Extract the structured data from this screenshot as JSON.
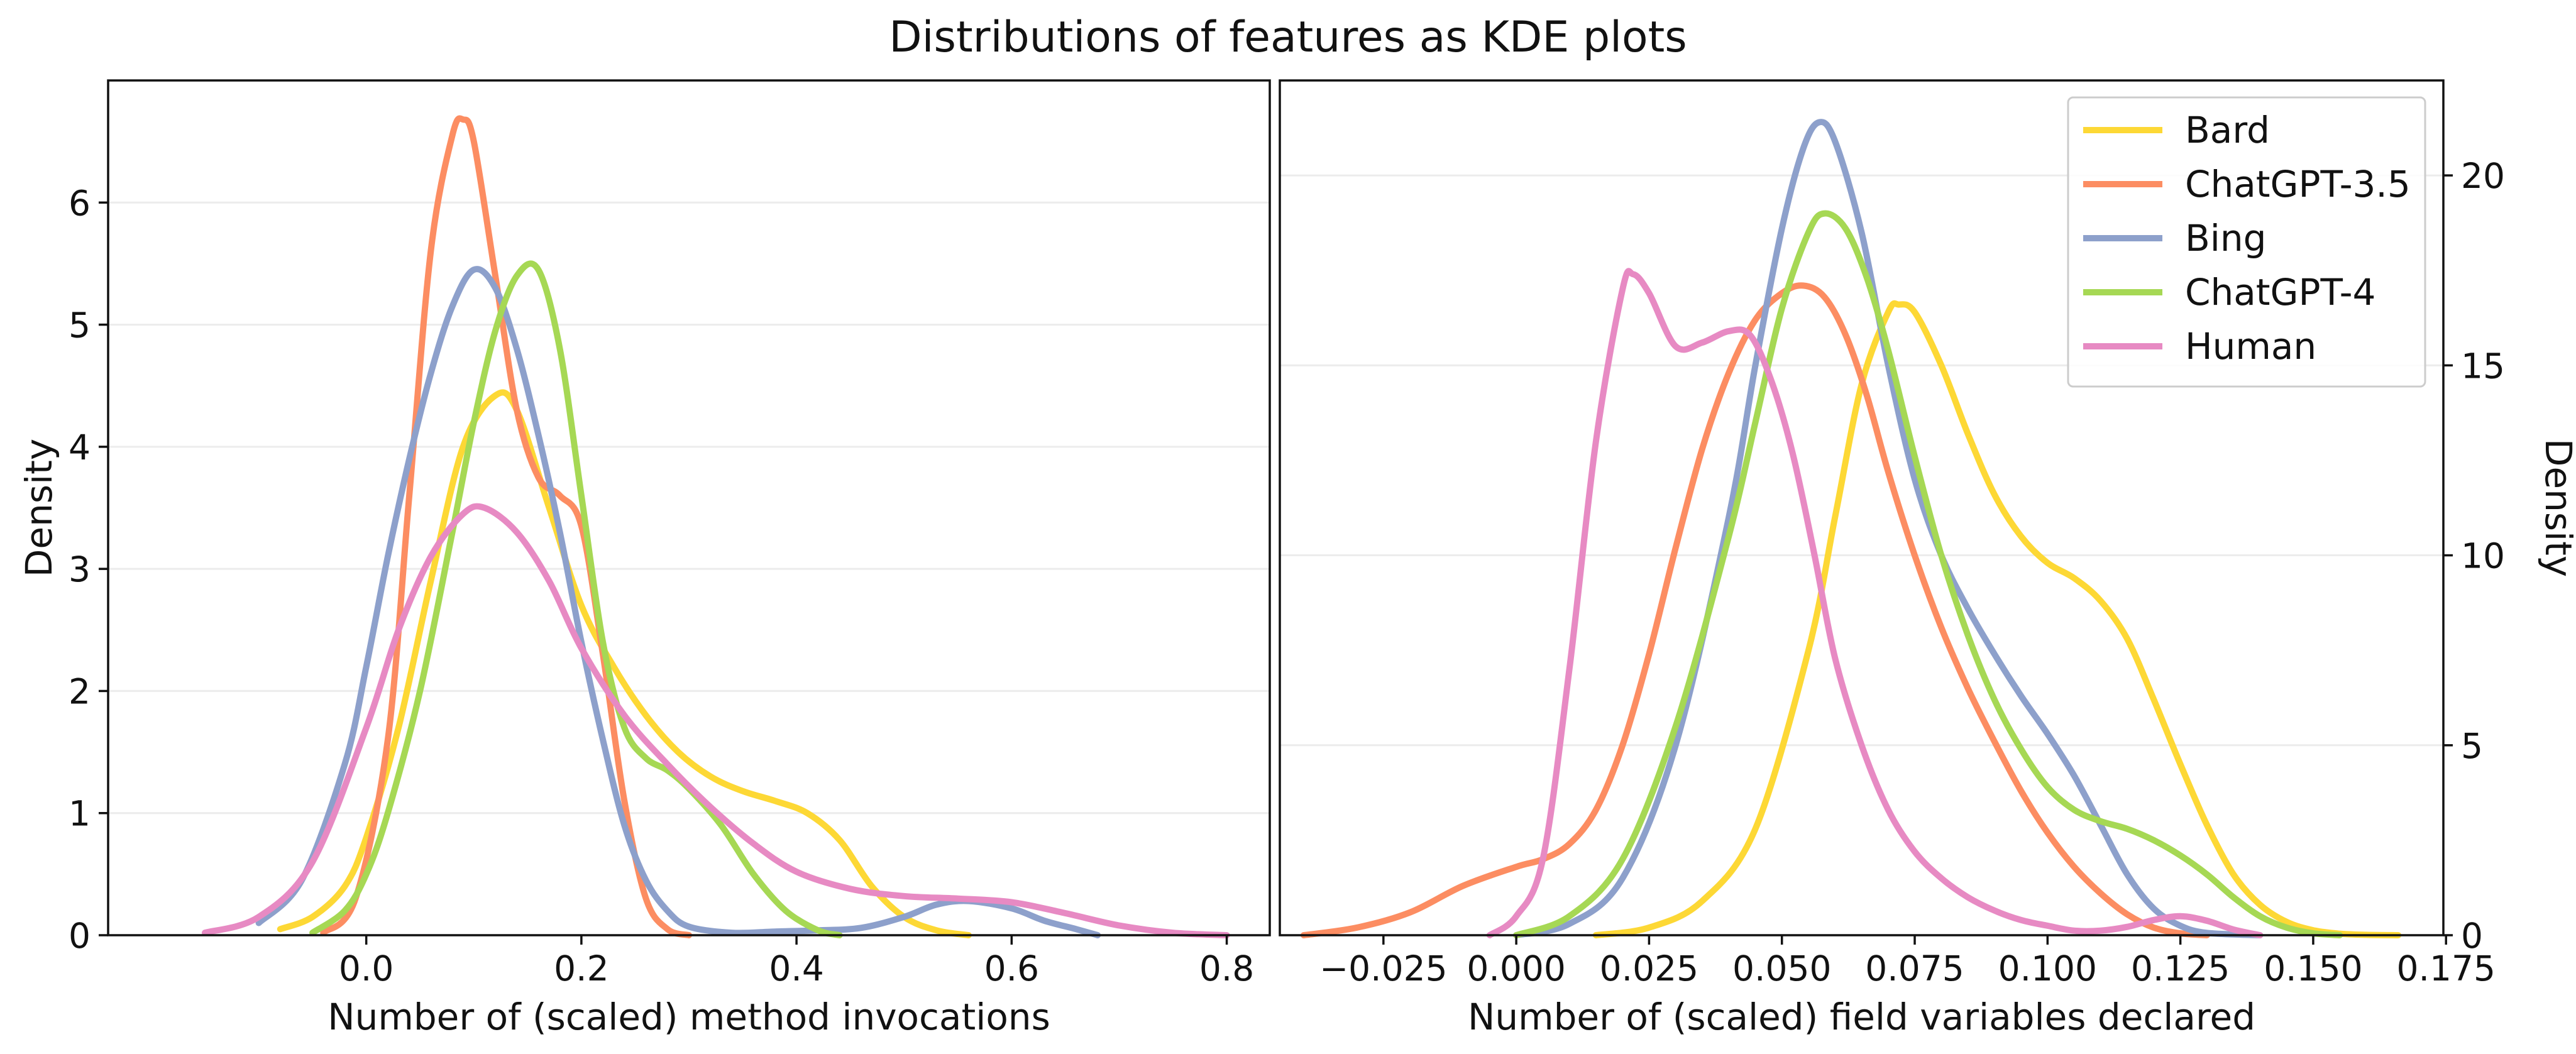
{
  "figure": {
    "title": "Distributions of features as KDE plots"
  },
  "legend": {
    "placement": "top-right",
    "items": [
      {
        "name": "Bard",
        "color": "#FDD835"
      },
      {
        "name": "ChatGPT-3.5",
        "color": "#FC8D62"
      },
      {
        "name": "Bing",
        "color": "#8DA0CB"
      },
      {
        "name": "ChatGPT-4",
        "color": "#A6D854"
      },
      {
        "name": "Human",
        "color": "#E78AC3"
      }
    ]
  },
  "chart_data": [
    {
      "type": "line",
      "subtype": "kde",
      "xlabel": "Number of (scaled) method invocations",
      "ylabel": "Density",
      "y_axis_side": "left",
      "xlim": [
        -0.24,
        0.84
      ],
      "ylim": [
        0,
        7.0
      ],
      "xticks": [
        "0.0",
        "0.2",
        "0.4",
        "0.6",
        "0.8"
      ],
      "xtick_values": [
        0.0,
        0.2,
        0.4,
        0.6,
        0.8
      ],
      "yticks": [
        "0",
        "1",
        "2",
        "3",
        "4",
        "5",
        "6"
      ],
      "ytick_values": [
        0,
        1,
        2,
        3,
        4,
        5,
        6
      ],
      "grid": "horizontal",
      "series": [
        {
          "name": "Bard",
          "color": "#FDD835",
          "x": [
            -0.08,
            -0.05,
            -0.02,
            0.0,
            0.03,
            0.06,
            0.09,
            0.12,
            0.14,
            0.17,
            0.2,
            0.23,
            0.26,
            0.29,
            0.32,
            0.35,
            0.38,
            0.41,
            0.44,
            0.47,
            0.5,
            0.53,
            0.56
          ],
          "y": [
            0.05,
            0.15,
            0.4,
            0.8,
            1.7,
            2.9,
            4.0,
            4.42,
            4.3,
            3.5,
            2.7,
            2.2,
            1.8,
            1.5,
            1.3,
            1.18,
            1.1,
            1.0,
            0.78,
            0.4,
            0.15,
            0.04,
            0.0
          ]
        },
        {
          "name": "ChatGPT-3.5",
          "color": "#FC8D62",
          "x": [
            -0.04,
            -0.01,
            0.02,
            0.04,
            0.06,
            0.08,
            0.09,
            0.1,
            0.12,
            0.14,
            0.16,
            0.18,
            0.2,
            0.22,
            0.24,
            0.26,
            0.28,
            0.3
          ],
          "y": [
            0.02,
            0.3,
            1.6,
            3.6,
            5.6,
            6.55,
            6.68,
            6.5,
            5.4,
            4.3,
            3.75,
            3.6,
            3.35,
            2.3,
            1.1,
            0.3,
            0.05,
            0.0
          ]
        },
        {
          "name": "Bing",
          "color": "#8DA0CB",
          "x": [
            -0.1,
            -0.06,
            -0.02,
            0.0,
            0.02,
            0.04,
            0.06,
            0.08,
            0.1,
            0.12,
            0.14,
            0.16,
            0.18,
            0.2,
            0.22,
            0.24,
            0.26,
            0.28,
            0.3,
            0.34,
            0.38,
            0.42,
            0.46,
            0.5,
            0.53,
            0.56,
            0.6,
            0.63,
            0.66,
            0.68
          ],
          "y": [
            0.1,
            0.45,
            1.4,
            2.2,
            3.1,
            3.9,
            4.6,
            5.15,
            5.45,
            5.3,
            4.8,
            4.1,
            3.3,
            2.4,
            1.6,
            0.9,
            0.45,
            0.2,
            0.07,
            0.02,
            0.03,
            0.04,
            0.06,
            0.15,
            0.25,
            0.28,
            0.22,
            0.12,
            0.05,
            0.0
          ]
        },
        {
          "name": "ChatGPT-4",
          "color": "#A6D854",
          "x": [
            -0.05,
            -0.02,
            0.0,
            0.02,
            0.05,
            0.08,
            0.1,
            0.12,
            0.14,
            0.16,
            0.18,
            0.2,
            0.22,
            0.24,
            0.26,
            0.28,
            0.3,
            0.33,
            0.36,
            0.39,
            0.42,
            0.44
          ],
          "y": [
            0.02,
            0.2,
            0.5,
            1.0,
            2.0,
            3.3,
            4.2,
            4.95,
            5.4,
            5.45,
            4.8,
            3.6,
            2.4,
            1.7,
            1.45,
            1.35,
            1.2,
            0.9,
            0.5,
            0.2,
            0.04,
            0.0
          ]
        },
        {
          "name": "Human",
          "color": "#E78AC3",
          "x": [
            -0.15,
            -0.1,
            -0.05,
            0.0,
            0.03,
            0.06,
            0.09,
            0.11,
            0.14,
            0.17,
            0.2,
            0.24,
            0.28,
            0.32,
            0.36,
            0.4,
            0.45,
            0.5,
            0.55,
            0.6,
            0.65,
            0.7,
            0.75,
            0.8
          ],
          "y": [
            0.02,
            0.15,
            0.6,
            1.7,
            2.5,
            3.1,
            3.45,
            3.5,
            3.3,
            2.9,
            2.35,
            1.8,
            1.4,
            1.05,
            0.75,
            0.52,
            0.38,
            0.32,
            0.3,
            0.27,
            0.18,
            0.08,
            0.02,
            0.0
          ]
        }
      ]
    },
    {
      "type": "line",
      "subtype": "kde",
      "xlabel": "Number of (scaled) field variables declared",
      "ylabel": "Density",
      "y_axis_side": "right",
      "xlim": [
        -0.0445,
        0.1745
      ],
      "ylim": [
        0,
        22.5
      ],
      "xticks": [
        "−0.025",
        "0.000",
        "0.025",
        "0.050",
        "0.075",
        "0.100",
        "0.125",
        "0.150",
        "0.175"
      ],
      "xtick_values": [
        -0.025,
        0.0,
        0.025,
        0.05,
        0.075,
        0.1,
        0.125,
        0.15,
        0.175
      ],
      "yticks": [
        "0",
        "5",
        "10",
        "15",
        "20"
      ],
      "ytick_values": [
        0,
        5,
        10,
        15,
        20
      ],
      "grid": "horizontal",
      "series": [
        {
          "name": "Bard",
          "color": "#FDD835",
          "x": [
            0.015,
            0.025,
            0.035,
            0.045,
            0.055,
            0.06,
            0.065,
            0.07,
            0.072,
            0.075,
            0.08,
            0.085,
            0.09,
            0.095,
            0.1,
            0.105,
            0.11,
            0.115,
            0.12,
            0.125,
            0.13,
            0.135,
            0.14,
            0.145,
            0.15,
            0.155,
            0.16,
            0.166
          ],
          "y": [
            0.0,
            0.2,
            0.9,
            2.8,
            7.5,
            11.0,
            14.5,
            16.4,
            16.6,
            16.4,
            15.0,
            13.2,
            11.6,
            10.5,
            9.8,
            9.4,
            8.8,
            7.8,
            6.2,
            4.5,
            2.9,
            1.6,
            0.8,
            0.35,
            0.13,
            0.04,
            0.01,
            0.0
          ]
        },
        {
          "name": "ChatGPT-3.5",
          "color": "#FC8D62",
          "x": [
            -0.04,
            -0.03,
            -0.02,
            -0.01,
            0.0,
            0.005,
            0.01,
            0.015,
            0.02,
            0.025,
            0.03,
            0.035,
            0.04,
            0.045,
            0.05,
            0.054,
            0.058,
            0.062,
            0.066,
            0.07,
            0.075,
            0.08,
            0.085,
            0.09,
            0.095,
            0.1,
            0.105,
            0.11,
            0.115,
            0.12,
            0.125,
            0.13
          ],
          "y": [
            0.0,
            0.2,
            0.6,
            1.3,
            1.8,
            2.0,
            2.4,
            3.3,
            5.0,
            7.4,
            10.2,
            12.8,
            14.8,
            16.2,
            16.9,
            17.1,
            16.8,
            15.8,
            14.2,
            12.2,
            10.0,
            8.1,
            6.5,
            5.1,
            3.8,
            2.7,
            1.8,
            1.1,
            0.55,
            0.2,
            0.05,
            0.0
          ]
        },
        {
          "name": "Bing",
          "color": "#8DA0CB",
          "x": [
            0.0,
            0.01,
            0.02,
            0.03,
            0.04,
            0.045,
            0.05,
            0.054,
            0.057,
            0.06,
            0.065,
            0.07,
            0.075,
            0.08,
            0.085,
            0.09,
            0.095,
            0.1,
            0.105,
            0.11,
            0.115,
            0.12,
            0.125,
            0.13,
            0.14
          ],
          "y": [
            0.0,
            0.3,
            1.5,
            5.0,
            11.0,
            15.0,
            18.6,
            20.7,
            21.4,
            20.9,
            18.5,
            15.0,
            12.0,
            10.0,
            8.6,
            7.4,
            6.3,
            5.3,
            4.2,
            2.9,
            1.6,
            0.7,
            0.25,
            0.06,
            0.0
          ]
        },
        {
          "name": "ChatGPT-4",
          "color": "#A6D854",
          "x": [
            0.0,
            0.01,
            0.02,
            0.03,
            0.04,
            0.045,
            0.05,
            0.055,
            0.058,
            0.062,
            0.066,
            0.07,
            0.075,
            0.08,
            0.085,
            0.09,
            0.095,
            0.1,
            0.105,
            0.11,
            0.115,
            0.12,
            0.125,
            0.13,
            0.135,
            0.14,
            0.145,
            0.15,
            0.155
          ],
          "y": [
            0.0,
            0.5,
            2.0,
            5.5,
            10.5,
            13.5,
            16.5,
            18.5,
            19.0,
            18.6,
            17.3,
            15.4,
            12.6,
            10.0,
            7.9,
            6.2,
            4.9,
            3.9,
            3.3,
            3.0,
            2.8,
            2.5,
            2.1,
            1.6,
            1.0,
            0.5,
            0.2,
            0.05,
            0.0
          ]
        },
        {
          "name": "Human",
          "color": "#E78AC3",
          "x": [
            -0.005,
            0.0,
            0.005,
            0.01,
            0.015,
            0.02,
            0.022,
            0.025,
            0.03,
            0.035,
            0.04,
            0.044,
            0.048,
            0.052,
            0.056,
            0.06,
            0.065,
            0.07,
            0.075,
            0.08,
            0.085,
            0.09,
            0.095,
            0.1,
            0.105,
            0.11,
            0.115,
            0.12,
            0.125,
            0.13,
            0.135,
            0.14
          ],
          "y": [
            0.0,
            0.5,
            2.0,
            7.0,
            13.0,
            17.0,
            17.4,
            16.9,
            15.5,
            15.6,
            15.9,
            15.8,
            14.6,
            12.7,
            10.1,
            7.3,
            5.0,
            3.3,
            2.2,
            1.5,
            1.0,
            0.65,
            0.4,
            0.25,
            0.12,
            0.12,
            0.22,
            0.4,
            0.5,
            0.38,
            0.15,
            0.0
          ]
        }
      ]
    }
  ]
}
